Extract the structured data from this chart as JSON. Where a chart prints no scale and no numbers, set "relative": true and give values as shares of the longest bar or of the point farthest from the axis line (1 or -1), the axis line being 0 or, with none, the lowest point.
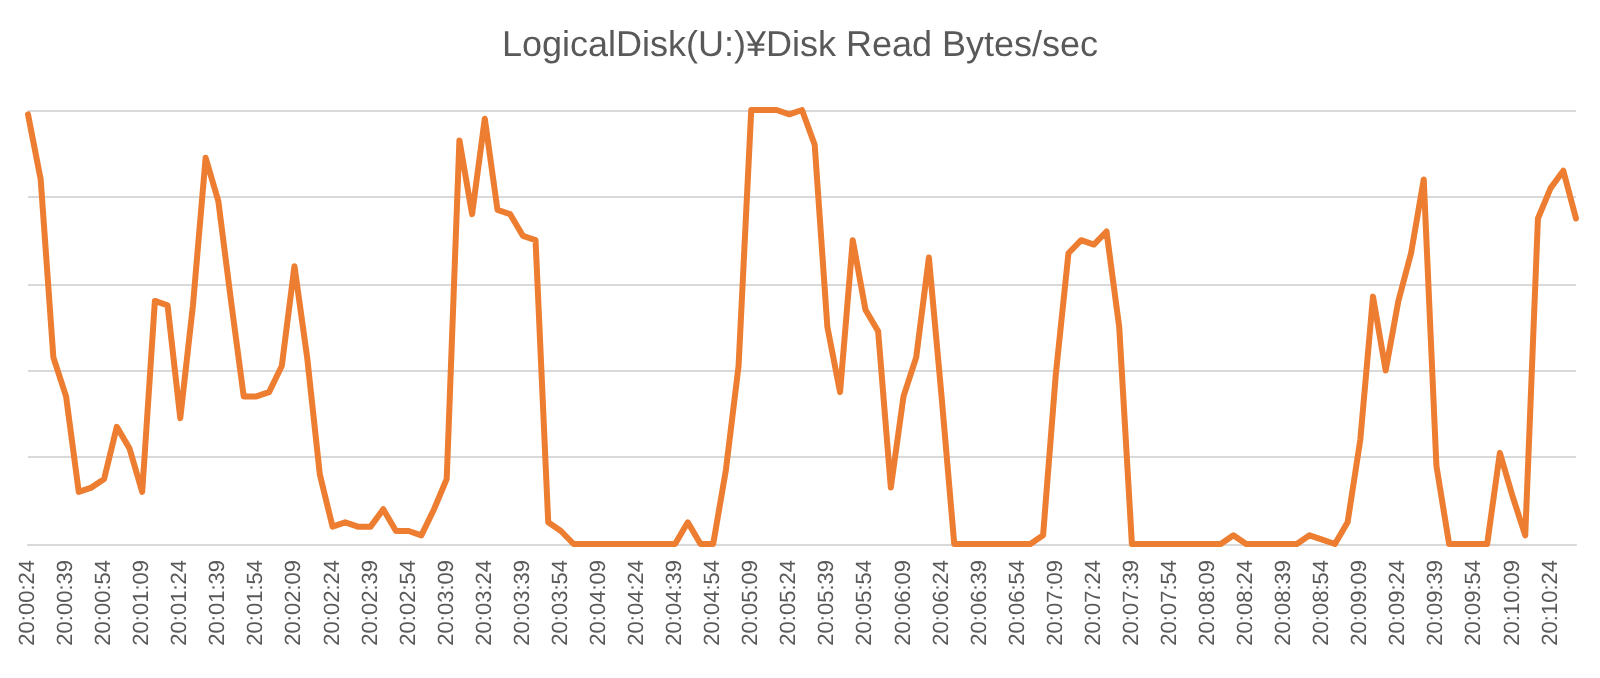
{
  "chart_data": {
    "type": "line",
    "title": "LogicalDisk(U:)¥Disk Read Bytes/sec",
    "relative": true,
    "grid": true,
    "marker": "none",
    "line_style": "solid",
    "categories": [
      "20:00:24",
      null,
      null,
      "20:00:39",
      null,
      null,
      "20:00:54",
      null,
      null,
      "20:01:09",
      null,
      null,
      "20:01:24",
      null,
      null,
      "20:01:39",
      null,
      null,
      "20:01:54",
      null,
      null,
      "20:02:09",
      null,
      null,
      "20:02:24",
      null,
      null,
      "20:02:39",
      null,
      null,
      "20:02:54",
      null,
      null,
      "20:03:09",
      null,
      null,
      "20:03:24",
      null,
      null,
      "20:03:39",
      null,
      null,
      "20:03:54",
      null,
      null,
      "20:04:09",
      null,
      null,
      "20:04:24",
      null,
      null,
      "20:04:39",
      null,
      null,
      "20:04:54",
      null,
      null,
      "20:05:09",
      null,
      null,
      "20:05:24",
      null,
      null,
      "20:05:39",
      null,
      null,
      "20:05:54",
      null,
      null,
      "20:06:09",
      null,
      null,
      "20:06:24",
      null,
      null,
      "20:06:39",
      null,
      null,
      "20:06:54",
      null,
      null,
      "20:07:09",
      null,
      null,
      "20:07:24",
      null,
      null,
      "20:07:39",
      null,
      null,
      "20:07:54",
      null,
      null,
      "20:08:09",
      null,
      null,
      "20:08:24",
      null,
      null,
      "20:08:39",
      null,
      null,
      "20:08:54",
      null,
      null,
      "20:09:09",
      null,
      null,
      "20:09:24",
      null,
      null,
      "20:09:39",
      null,
      null,
      "20:09:54",
      null,
      null,
      "20:10:09",
      null,
      null,
      "20:10:24",
      null,
      null
    ],
    "series": [
      {
        "color": "#ed7d31",
        "values": [
          0.99,
          0.84,
          0.43,
          0.34,
          0.12,
          0.13,
          0.15,
          0.27,
          0.22,
          0.12,
          0.56,
          0.55,
          0.29,
          0.55,
          0.89,
          0.79,
          0.56,
          0.34,
          0.34,
          0.35,
          0.41,
          0.64,
          0.43,
          0.16,
          0.04,
          0.05,
          0.04,
          0.04,
          0.08,
          0.03,
          0.03,
          0.02,
          0.08,
          0.15,
          0.93,
          0.76,
          0.98,
          0.77,
          0.76,
          0.71,
          0.7,
          0.05,
          0.03,
          0,
          0,
          0,
          0,
          0,
          0,
          0,
          0,
          0,
          0.05,
          0,
          0,
          0.17,
          0.41,
          1,
          1,
          1,
          0.99,
          1,
          0.92,
          0.5,
          0.35,
          0.7,
          0.54,
          0.49,
          0.13,
          0.34,
          0.43,
          0.66,
          0.34,
          0,
          0,
          0,
          0,
          0,
          0,
          0,
          0.02,
          0.39,
          0.67,
          0.7,
          0.69,
          0.72,
          0.5,
          0,
          0,
          0,
          0,
          0,
          0,
          0,
          0,
          0.02,
          0,
          0,
          0,
          0,
          0,
          0.02,
          0.01,
          0,
          0.05,
          0.24,
          0.57,
          0.4,
          0.56,
          0.67,
          0.84,
          0.18,
          0,
          0,
          0,
          0,
          0.21,
          0.11,
          0.02,
          0.75,
          0.82,
          0.86,
          0.75
        ]
      }
    ]
  }
}
